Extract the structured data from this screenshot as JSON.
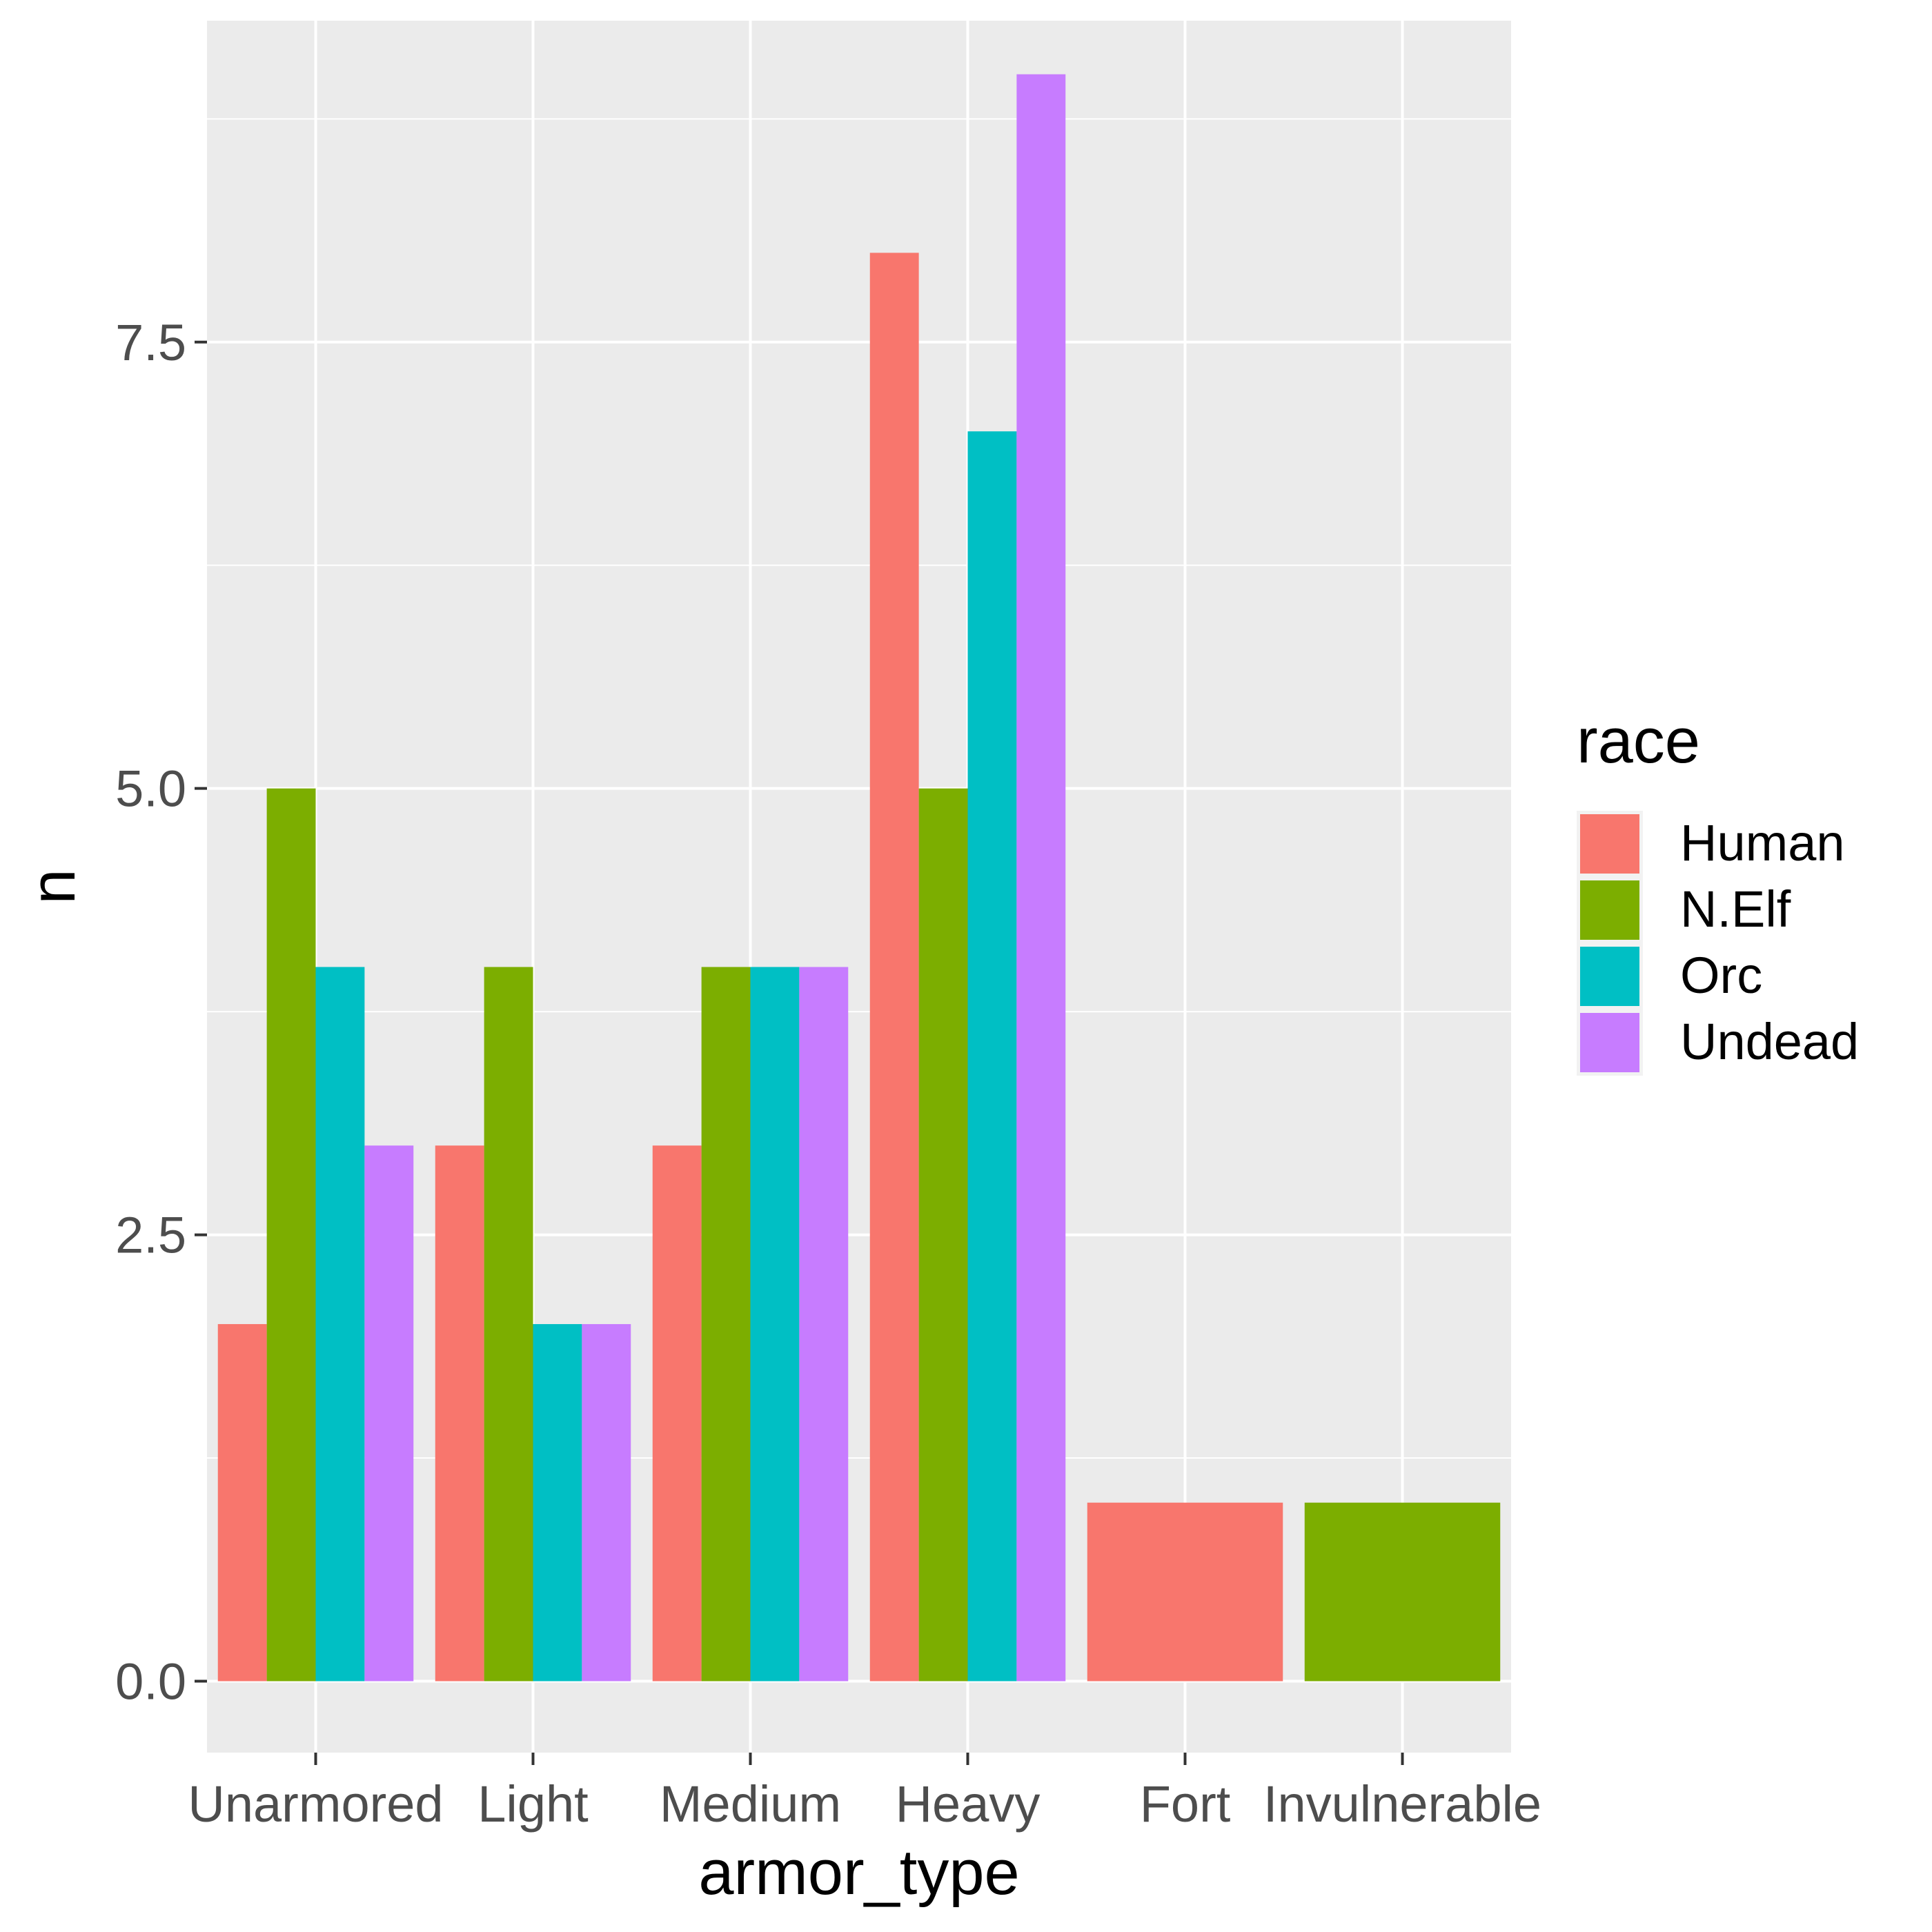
{
  "chart_data": {
    "type": "bar",
    "xlabel": "armor_type",
    "ylabel": "n",
    "categories": [
      "Unarmored",
      "Light",
      "Medium",
      "Heavy",
      "Fort",
      "Invulnerable"
    ],
    "ylim": [
      -0.4,
      9.3
    ],
    "yticks": [
      0.0,
      2.5,
      5.0,
      7.5
    ],
    "ytick_labels": [
      "0.0",
      "2.5",
      "5.0",
      "7.5"
    ],
    "legend_title": "race",
    "legend_position": "right",
    "grid": true,
    "background": "#ebebeb",
    "series": [
      {
        "name": "Human",
        "color": "#F8766D",
        "values": [
          2,
          3,
          3,
          8,
          1,
          null
        ]
      },
      {
        "name": "N.Elf",
        "color": "#7CAE00",
        "values": [
          5,
          4,
          4,
          5,
          null,
          1
        ]
      },
      {
        "name": "Orc",
        "color": "#00BFC4",
        "values": [
          4,
          2,
          4,
          7,
          null,
          null
        ]
      },
      {
        "name": "Undead",
        "color": "#C77CFF",
        "values": [
          3,
          2,
          4,
          9,
          null,
          null
        ]
      }
    ]
  }
}
